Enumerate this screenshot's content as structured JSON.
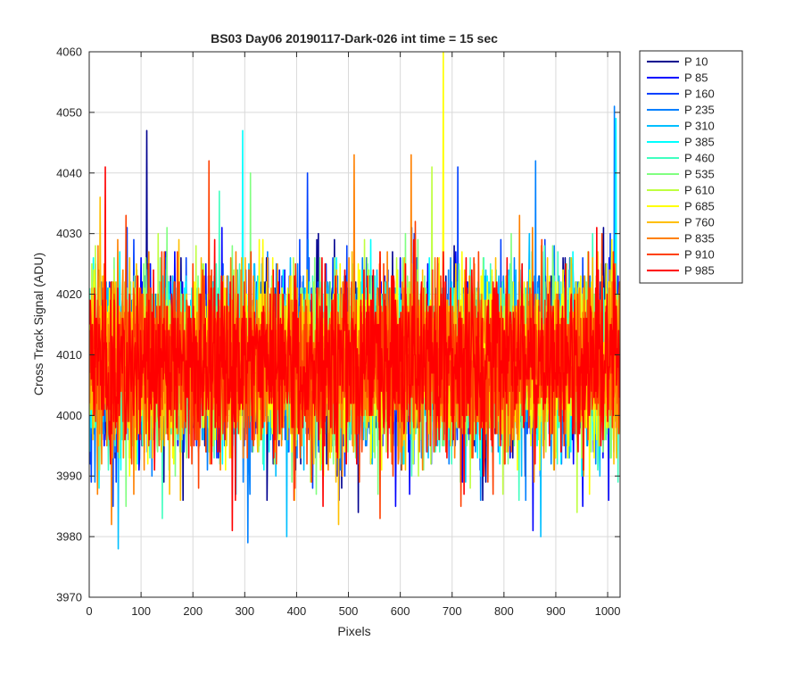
{
  "chart_data": {
    "type": "line",
    "title": "BS03 Day06 20190117-Dark-026 int time = 15 sec",
    "xlabel": "Pixels",
    "ylabel": "Cross Track Signal (ADU)",
    "xlim": [
      0,
      1024
    ],
    "ylim": [
      3970,
      4060
    ],
    "xticks": [
      0,
      100,
      200,
      300,
      400,
      500,
      600,
      700,
      800,
      900,
      1000
    ],
    "yticks": [
      3970,
      3980,
      3990,
      4000,
      4010,
      4020,
      4030,
      4040,
      4050,
      4060
    ],
    "grid": true,
    "legend_position": "outside-top-right",
    "series_summary": {
      "n_points": 1024,
      "center": 4009,
      "spread": 7
    },
    "series": [
      {
        "name": "P 10",
        "color": "#00008f",
        "spikes": [
          [
            110,
            4047
          ],
          [
            180,
            3986
          ]
        ]
      },
      {
        "name": "P 85",
        "color": "#0000ff",
        "spikes": [
          [
            590,
            3985
          ],
          [
            855,
            3981
          ]
        ]
      },
      {
        "name": "P 160",
        "color": "#0040ff",
        "spikes": [
          [
            420,
            4040
          ],
          [
            710,
            4041
          ]
        ]
      },
      {
        "name": "P 235",
        "color": "#0080ff",
        "spikes": [
          [
            305,
            3979
          ],
          [
            860,
            4042
          ],
          [
            1012,
            4051
          ]
        ]
      },
      {
        "name": "P 310",
        "color": "#00bfff",
        "spikes": [
          [
            55,
            3978
          ],
          [
            380,
            3980
          ],
          [
            870,
            3980
          ]
        ]
      },
      {
        "name": "P 385",
        "color": "#00ffff",
        "spikes": [
          [
            295,
            4047
          ],
          [
            1015,
            4049
          ]
        ]
      },
      {
        "name": "P 460",
        "color": "#40ffbf",
        "spikes": [
          [
            250,
            4037
          ],
          [
            140,
            3983
          ]
        ]
      },
      {
        "name": "P 535",
        "color": "#80ff80",
        "spikes": [
          [
            310,
            4040
          ],
          [
            70,
            3985
          ]
        ]
      },
      {
        "name": "P 610",
        "color": "#bfff40",
        "spikes": [
          [
            660,
            4041
          ],
          [
            940,
            3984
          ]
        ]
      },
      {
        "name": "P 685",
        "color": "#ffff00",
        "spikes": [
          [
            682,
            4060
          ],
          [
            395,
            3986
          ]
        ]
      },
      {
        "name": "P 760",
        "color": "#ffbf00",
        "spikes": [
          [
            20,
            4036
          ],
          [
            480,
            3982
          ]
        ]
      },
      {
        "name": "P 835",
        "color": "#ff8000",
        "spikes": [
          [
            510,
            4043
          ],
          [
            620,
            4043
          ],
          [
            42,
            3982
          ]
        ]
      },
      {
        "name": "P 910",
        "color": "#ff4000",
        "spikes": [
          [
            230,
            4042
          ],
          [
            560,
            3983
          ]
        ]
      },
      {
        "name": "P 985",
        "color": "#ff0000",
        "spikes": [
          [
            30,
            4041
          ],
          [
            275,
            3981
          ],
          [
            450,
            3985
          ]
        ]
      }
    ]
  }
}
